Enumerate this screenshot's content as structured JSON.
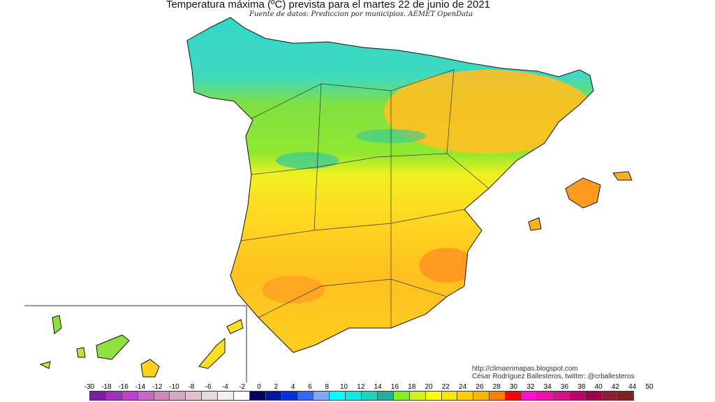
{
  "title": "Temperatura máxima (ºC) prevista para el martes 22 de junio de 2021",
  "subtitle": "Fuente de datos: Prediccion por municipios. AEMET OpenData",
  "credits": {
    "line1": "http://climaenmapas.blogspot.com",
    "line2": "César Rodríguez Ballesteros, twitter: @crballesteros"
  },
  "legend": {
    "labels": [
      "-30",
      "-18",
      "-16",
      "-14",
      "-12",
      "-10",
      "-8",
      "-6",
      "-4",
      "-2",
      "0",
      "2",
      "4",
      "6",
      "8",
      "10",
      "12",
      "14",
      "16",
      "18",
      "20",
      "22",
      "24",
      "26",
      "28",
      "30",
      "32",
      "34",
      "36",
      "38",
      "40",
      "42",
      "44",
      "50"
    ],
    "colors": [
      "#7a20a8",
      "#a030c0",
      "#c040d0",
      "#c868c8",
      "#d088b8",
      "#d8a8c0",
      "#e0c0d0",
      "#e8d8e0",
      "#f0f0f0",
      "#ffffff",
      "#000066",
      "#0018a0",
      "#0030e0",
      "#3068ff",
      "#80a8ff",
      "#00ffff",
      "#10e8e0",
      "#20d0c0",
      "#20b0a0",
      "#80f020",
      "#d0f020",
      "#ffff00",
      "#ffe400",
      "#ffcc00",
      "#ffb400",
      "#ff8000",
      "#ff0000",
      "#ff10d0",
      "#f010a8",
      "#d81088",
      "#c00068",
      "#a00048",
      "#902030",
      "#802020"
    ]
  }
}
